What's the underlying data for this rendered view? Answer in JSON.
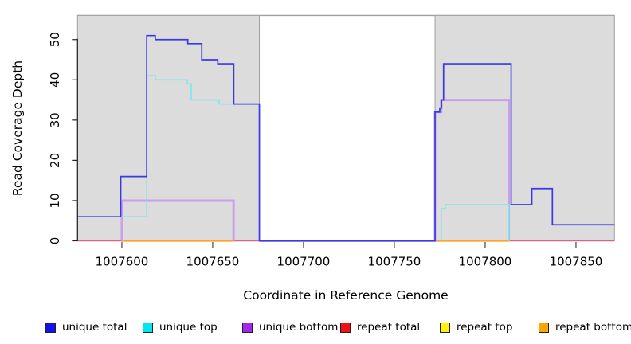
{
  "chart_data": {
    "type": "step-line",
    "title": "",
    "xlabel": "Coordinate in Reference Genome",
    "ylabel": "Read Coverage Depth",
    "xlim": [
      1007575.6,
      1007871.2
    ],
    "ylim": [
      0,
      56
    ],
    "x_ticks": [
      1007600,
      1007650,
      1007700,
      1007750,
      1007800,
      1007850
    ],
    "y_ticks": [
      0,
      10,
      20,
      30,
      40,
      50
    ],
    "grid": "off",
    "legend_position": "bottom",
    "panel_fill": "#dcdcdc",
    "panel_border": "#a0a0a0",
    "background_blocks": [
      {
        "x0": 1007575.6,
        "x1": 1007675.7
      },
      {
        "x0": 1007772.4,
        "x1": 1007871.2
      }
    ],
    "series": [
      {
        "name": "repeat total",
        "color": "#e06287",
        "width": 1.6,
        "parts": [
          {
            "steps": [
              [
                1007575.6,
                0
              ]
            ],
            "end": 1007675.7,
            "open_start": true,
            "open_end": true
          },
          {
            "steps": [
              [
                1007772.4,
                0
              ]
            ],
            "end": 1007871.2,
            "open_start": true,
            "open_end": true
          }
        ]
      },
      {
        "name": "repeat top",
        "color": "#f5e642",
        "width": 1.4,
        "parts": [
          {
            "steps": [
              [
                1007600,
                0
              ]
            ],
            "end": 1007661.5,
            "open_start": true,
            "open_end": true
          },
          {
            "steps": [
              [
                1007773,
                0
              ]
            ],
            "end": 1007813.6,
            "open_start": true,
            "open_end": true
          }
        ]
      },
      {
        "name": "repeat bottom",
        "color": "#ffa226",
        "width": 2.2,
        "parts": [
          {
            "steps": [
              [
                1007600,
                0
              ]
            ],
            "end": 1007661.5,
            "open_start": true,
            "open_end": true
          },
          {
            "steps": [
              [
                1007773,
                0
              ]
            ],
            "end": 1007813.6,
            "open_start": true,
            "open_end": true
          }
        ]
      },
      {
        "name": "unique bottom",
        "color": "#c9a0e9",
        "width": 3,
        "parts": [
          {
            "steps": [
              [
                1007600,
                10
              ]
            ],
            "end": 1007661.5,
            "open_start": false,
            "open_end": false
          },
          {
            "steps": [
              [
                1007675.7,
                0
              ],
              [
                1007772.4,
                32
              ],
              [
                1007775.8,
                35
              ]
            ],
            "end": 1007813,
            "open_start": true,
            "open_end": false
          }
        ]
      },
      {
        "name": "unique top",
        "color": "#7ce6ef",
        "width": 1.6,
        "parts": [
          {
            "steps": [
              [
                1007575.6,
                6
              ],
              [
                1007613.7,
                41
              ],
              [
                1007618.4,
                40
              ],
              [
                1007636,
                39
              ],
              [
                1007638.2,
                35
              ],
              [
                1007653.5,
                34
              ]
            ],
            "end": 1007675.7,
            "open_start": true,
            "open_end": false
          },
          {
            "steps": [
              [
                1007775.8,
                8
              ],
              [
                1007778,
                9
              ]
            ],
            "end": 1007813,
            "open_start": false,
            "open_end": false
          }
        ]
      },
      {
        "name": "unique total",
        "color": "#3a3ae2",
        "width": 1.7,
        "parts": [
          {
            "steps": [
              [
                1007575.6,
                6
              ],
              [
                1007599.4,
                16
              ],
              [
                1007613.7,
                51
              ],
              [
                1007618.4,
                50
              ],
              [
                1007636.3,
                49
              ],
              [
                1007644,
                45
              ],
              [
                1007652.8,
                44
              ],
              [
                1007661.6,
                34
              ],
              [
                1007675.7,
                0
              ],
              [
                1007772.4,
                32
              ],
              [
                1007775,
                33
              ],
              [
                1007776,
                35
              ],
              [
                1007777.1,
                44
              ],
              [
                1007814.3,
                9
              ],
              [
                1007825.7,
                13
              ],
              [
                1007837,
                4
              ]
            ],
            "end": 1007871.2,
            "open_start": true,
            "open_end": true
          }
        ]
      }
    ],
    "legend": [
      {
        "label": "unique total",
        "color": "#1212ee"
      },
      {
        "label": "unique top",
        "color": "#00e6ee"
      },
      {
        "label": "unique bottom",
        "color": "#a226f0"
      },
      {
        "label": "repeat total",
        "color": "#ee1212"
      },
      {
        "label": "repeat top",
        "color": "#fff200"
      },
      {
        "label": "repeat bottom",
        "color": "#ffa502"
      }
    ]
  }
}
